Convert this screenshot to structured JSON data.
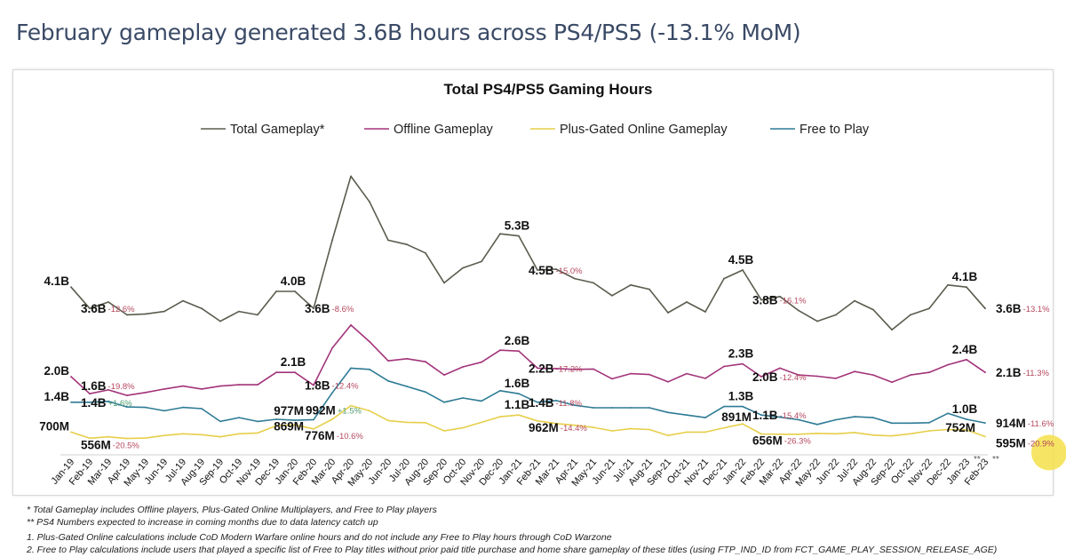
{
  "page_title": "February gameplay generated 3.6B hours across PS4/PS5 (-13.1% MoM)",
  "chart_data": {
    "type": "line",
    "title": "Total PS4/PS5 Gaming Hours",
    "xlabel": "",
    "ylabel": "",
    "unit": "billion hours",
    "grid": false,
    "legend_position": "top",
    "categories": [
      "Jan-19",
      "Feb-19",
      "Mar-19",
      "Apr-19",
      "May-19",
      "Jun-19",
      "Jul-19",
      "Aug-19",
      "Sep-19",
      "Oct-19",
      "Nov-19",
      "Dec-19",
      "Jan-20",
      "Feb-20",
      "Mar-20",
      "Apr-20",
      "May-20",
      "Jun-20",
      "Jul-20",
      "Aug-20",
      "Sep-20",
      "Oct-20",
      "Nov-20",
      "Dec-20",
      "Jan-21",
      "Feb-21",
      "Mar-21",
      "Apr-21",
      "May-21",
      "Jun-21",
      "Jul-21",
      "Aug-21",
      "Sep-21",
      "Oct-21",
      "Nov-21",
      "Dec-21",
      "Jan-22",
      "Feb-22",
      "Mar-22",
      "Apr-22",
      "May-22",
      "Jun-22",
      "Jul-22",
      "Aug-22",
      "Sep-22",
      "Oct-22",
      "Nov-22",
      "Dec-22",
      "Jan-23",
      "Feb-23"
    ],
    "category_marks": {
      "Jan-23": "**",
      "Feb-23": "**"
    },
    "series": [
      {
        "name": "Total Gameplay*",
        "color": "#5b5b4e",
        "values": [
          4.1,
          3.6,
          3.75,
          3.45,
          3.47,
          3.53,
          3.78,
          3.6,
          3.3,
          3.53,
          3.45,
          4.0,
          4.0,
          3.6,
          5.2,
          6.7,
          6.1,
          5.2,
          5.1,
          4.9,
          4.2,
          4.55,
          4.7,
          5.35,
          5.3,
          4.5,
          4.52,
          4.3,
          4.2,
          3.9,
          4.15,
          4.05,
          3.5,
          3.75,
          3.52,
          4.3,
          4.5,
          3.8,
          3.88,
          3.55,
          3.3,
          3.45,
          3.78,
          3.57,
          3.1,
          3.45,
          3.6,
          4.15,
          4.1,
          3.6
        ]
      },
      {
        "name": "Offline Gameplay",
        "color": "#a3347a",
        "values": [
          2.0,
          1.6,
          1.69,
          1.56,
          1.63,
          1.71,
          1.78,
          1.71,
          1.78,
          1.81,
          1.81,
          2.1,
          2.1,
          1.8,
          2.67,
          3.21,
          2.82,
          2.37,
          2.42,
          2.35,
          2.04,
          2.23,
          2.34,
          2.62,
          2.6,
          2.2,
          2.19,
          2.17,
          2.18,
          1.95,
          2.07,
          2.05,
          1.88,
          2.07,
          1.96,
          2.24,
          2.3,
          2.0,
          2.2,
          2.04,
          2.01,
          1.96,
          2.12,
          2.04,
          1.87,
          2.04,
          2.1,
          2.28,
          2.4,
          2.1
        ]
      },
      {
        "name": "Plus-Gated Online Gameplay",
        "color": "#e6cf4a",
        "values": [
          0.7,
          0.556,
          0.59,
          0.55,
          0.56,
          0.62,
          0.66,
          0.64,
          0.59,
          0.66,
          0.68,
          0.85,
          0.869,
          0.776,
          1.0,
          1.32,
          1.2,
          0.97,
          0.93,
          0.92,
          0.73,
          0.8,
          0.93,
          1.06,
          1.1,
          0.962,
          0.9,
          0.86,
          0.81,
          0.73,
          0.78,
          0.76,
          0.62,
          0.7,
          0.7,
          0.8,
          0.891,
          0.656,
          0.65,
          0.65,
          0.67,
          0.66,
          0.69,
          0.63,
          0.61,
          0.66,
          0.73,
          0.76,
          0.752,
          0.595
        ]
      },
      {
        "name": "Free to Play",
        "color": "#2e7b95",
        "values": [
          1.4,
          1.4,
          1.42,
          1.29,
          1.28,
          1.2,
          1.28,
          1.25,
          0.95,
          1.04,
          0.95,
          1.0,
          0.977,
          0.992,
          1.62,
          2.2,
          2.17,
          1.9,
          1.77,
          1.64,
          1.4,
          1.5,
          1.43,
          1.67,
          1.6,
          1.4,
          1.44,
          1.33,
          1.27,
          1.27,
          1.27,
          1.27,
          1.16,
          1.1,
          1.04,
          1.3,
          1.3,
          1.1,
          1.05,
          0.99,
          0.88,
          0.99,
          1.06,
          1.04,
          0.91,
          0.91,
          0.92,
          1.14,
          1.0,
          0.914
        ]
      }
    ],
    "annotations": [
      {
        "series": 0,
        "month": "Jan-19",
        "label": "4.1B",
        "change": ""
      },
      {
        "series": 0,
        "month": "Feb-19",
        "label": "3.6B",
        "change": "-12.6%"
      },
      {
        "series": 0,
        "month": "Jan-20",
        "label": "4.0B",
        "change": ""
      },
      {
        "series": 0,
        "month": "Feb-20",
        "label": "3.6B",
        "change": "-8.6%"
      },
      {
        "series": 0,
        "month": "Jan-21",
        "label": "5.3B",
        "change": ""
      },
      {
        "series": 0,
        "month": "Feb-21",
        "label": "4.5B",
        "change": "-15.0%"
      },
      {
        "series": 0,
        "month": "Jan-22",
        "label": "4.5B",
        "change": ""
      },
      {
        "series": 0,
        "month": "Feb-22",
        "label": "3.8B",
        "change": "-16.1%"
      },
      {
        "series": 0,
        "month": "Jan-23",
        "label": "4.1B",
        "change": ""
      },
      {
        "series": 0,
        "month": "Feb-23",
        "label": "3.6B",
        "change": "-13.1%"
      },
      {
        "series": 1,
        "month": "Jan-19",
        "label": "2.0B",
        "change": ""
      },
      {
        "series": 1,
        "month": "Feb-19",
        "label": "1.6B",
        "change": "-19.8%"
      },
      {
        "series": 1,
        "month": "Jan-20",
        "label": "2.1B",
        "change": ""
      },
      {
        "series": 1,
        "month": "Feb-20",
        "label": "1.8B",
        "change": "-12.4%"
      },
      {
        "series": 1,
        "month": "Jan-21",
        "label": "2.6B",
        "change": ""
      },
      {
        "series": 1,
        "month": "Feb-21",
        "label": "2.2B",
        "change": "-17.2%"
      },
      {
        "series": 1,
        "month": "Jan-22",
        "label": "2.3B",
        "change": ""
      },
      {
        "series": 1,
        "month": "Feb-22",
        "label": "2.0B",
        "change": "-12.4%"
      },
      {
        "series": 1,
        "month": "Jan-23",
        "label": "2.4B",
        "change": ""
      },
      {
        "series": 1,
        "month": "Feb-23",
        "label": "2.1B",
        "change": "-11.3%"
      },
      {
        "series": 3,
        "month": "Jan-19",
        "label": "1.4B",
        "change": ""
      },
      {
        "series": 3,
        "month": "Feb-19",
        "label": "1.4B",
        "change": "+1.6%"
      },
      {
        "series": 3,
        "month": "Jan-20",
        "label": "977M",
        "change": ""
      },
      {
        "series": 3,
        "month": "Feb-20",
        "label": "992M",
        "change": "+1.5%"
      },
      {
        "series": 3,
        "month": "Jan-21",
        "label": "1.6B",
        "change": ""
      },
      {
        "series": 3,
        "month": "Feb-21",
        "label": "1.4B",
        "change": "-11.8%"
      },
      {
        "series": 3,
        "month": "Jan-22",
        "label": "1.3B",
        "change": ""
      },
      {
        "series": 3,
        "month": "Feb-22",
        "label": "1.1B",
        "change": "-15.4%"
      },
      {
        "series": 3,
        "month": "Jan-23",
        "label": "1.0B",
        "change": ""
      },
      {
        "series": 3,
        "month": "Feb-23",
        "label": "914M",
        "change": "-11.6%"
      },
      {
        "series": 2,
        "month": "Jan-19",
        "label": "700M",
        "change": ""
      },
      {
        "series": 2,
        "month": "Feb-19",
        "label": "556M",
        "change": "-20.5%"
      },
      {
        "series": 2,
        "month": "Jan-20",
        "label": "869M",
        "change": ""
      },
      {
        "series": 2,
        "month": "Feb-20",
        "label": "776M",
        "change": "-10.6%"
      },
      {
        "series": 2,
        "month": "Jan-21",
        "label": "1.1B",
        "change": ""
      },
      {
        "series": 2,
        "month": "Feb-21",
        "label": "962M",
        "change": "-14.4%"
      },
      {
        "series": 2,
        "month": "Jan-22",
        "label": "891M",
        "change": ""
      },
      {
        "series": 2,
        "month": "Feb-22",
        "label": "656M",
        "change": "-26.3%"
      },
      {
        "series": 2,
        "month": "Jan-23",
        "label": "752M",
        "change": ""
      },
      {
        "series": 2,
        "month": "Feb-23",
        "label": "595M",
        "change": "-20.9%",
        "highlight": true
      }
    ],
    "colors": {
      "negative_change": "#b5485e",
      "positive_change": "#4f9a6e",
      "highlight": "#f5e04a"
    }
  },
  "footnotes": [
    "* Total Gameplay includes Offline players, Plus-Gated Online Multiplayers, and Free to Play players",
    "** PS4 Numbers expected to increase in coming months due to data latency catch up",
    "1. Plus-Gated Online calculations include CoD Modern Warfare online hours and do not include any Free to Play hours through CoD Warzone",
    "2. Free to Play calculations include users that played a specific list of Free to Play titles without prior paid title purchase and home share gameplay of these titles (using FTP_IND_ID from  FCT_GAME_PLAY_SESSION_RELEASE_AGE)"
  ]
}
